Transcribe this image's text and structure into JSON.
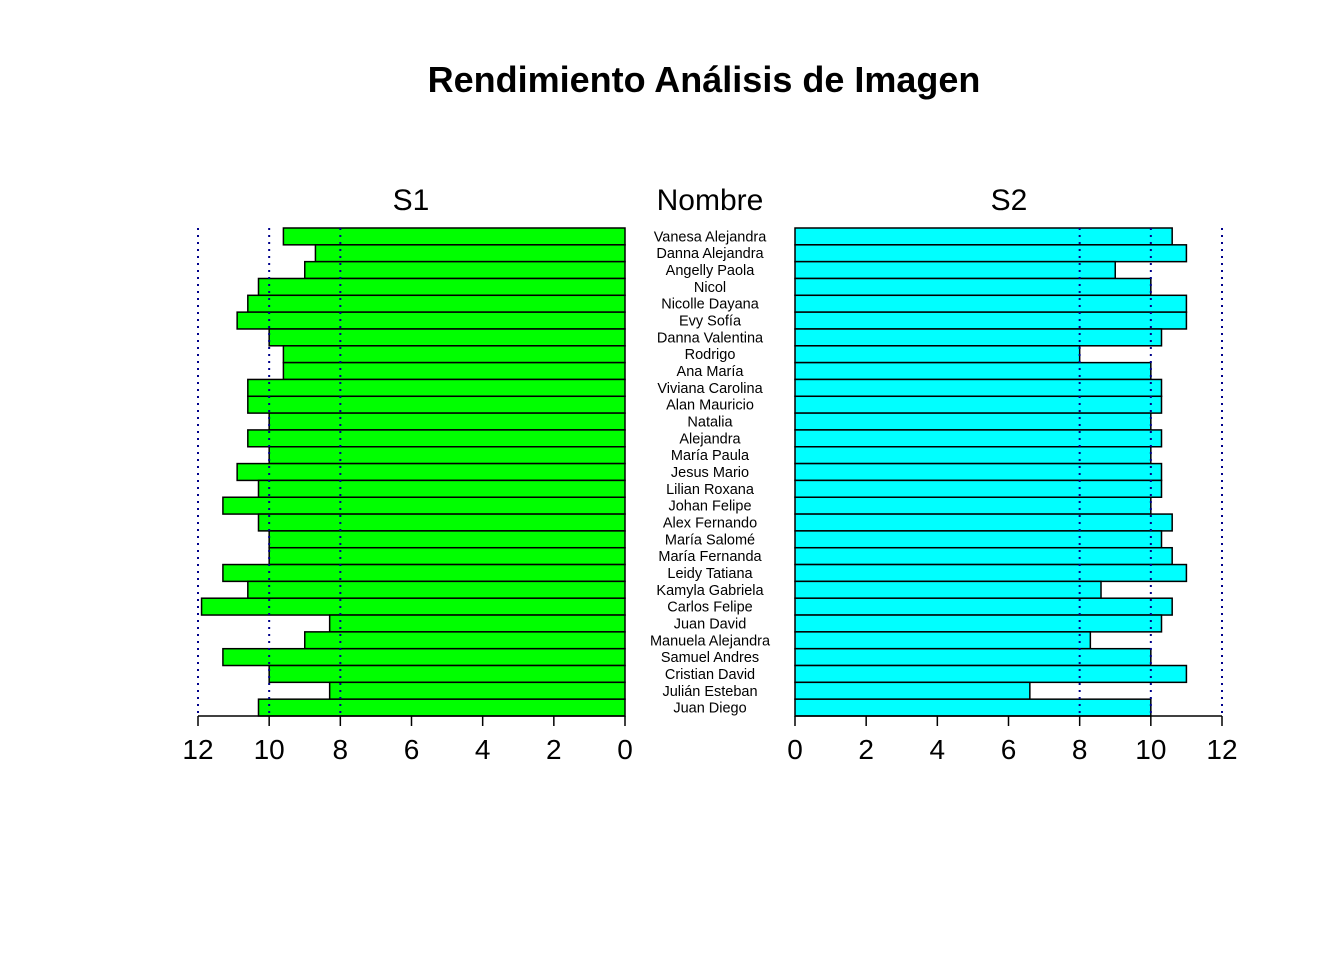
{
  "chart_data": {
    "type": "bar",
    "title": "Rendimiento Análisis de Imagen",
    "center_label": "Nombre",
    "categories": [
      "Vanesa Alejandra",
      "Danna Alejandra",
      "Angelly Paola",
      "Nicol",
      "Nicolle Dayana",
      "Evy Sofía",
      "Danna Valentina",
      "Rodrigo",
      "Ana María",
      "Viviana Carolina",
      "Alan Mauricio",
      "Natalia",
      "Alejandra",
      "María Paula",
      "Jesus Mario",
      "Lilian Roxana",
      "Johan Felipe",
      "Alex Fernando",
      "María Salomé",
      "María Fernanda",
      "Leidy Tatiana",
      "Kamyla Gabriela",
      "Carlos Felipe",
      "Juan David",
      "Manuela Alejandra",
      "Samuel Andres",
      "Cristian David",
      "Julián Esteban",
      "Juan Diego"
    ],
    "series": [
      {
        "name": "S1",
        "color": "#00ff00",
        "values": [
          9.6,
          8.7,
          9.0,
          10.3,
          10.6,
          10.9,
          10.0,
          9.6,
          9.6,
          10.6,
          10.6,
          10.0,
          10.6,
          10.0,
          10.9,
          10.3,
          11.3,
          10.3,
          10.0,
          10.0,
          11.3,
          10.6,
          11.9,
          8.3,
          9.0,
          11.3,
          10.0,
          8.3,
          10.3
        ]
      },
      {
        "name": "S2",
        "color": "#00ffff",
        "values": [
          10.6,
          11.0,
          9.0,
          10.0,
          11.0,
          11.0,
          10.3,
          8.0,
          10.0,
          10.3,
          10.3,
          10.0,
          10.3,
          10.0,
          10.3,
          10.3,
          10.0,
          10.6,
          10.3,
          10.6,
          11.0,
          8.6,
          10.6,
          10.3,
          8.3,
          10.0,
          11.0,
          6.6,
          10.0
        ]
      }
    ],
    "xlim": [
      0,
      12
    ],
    "ticks": [
      0,
      2,
      4,
      6,
      8,
      10,
      12
    ],
    "reference_lines": [
      8,
      10,
      12
    ],
    "reference_line_color": "#00008b"
  }
}
